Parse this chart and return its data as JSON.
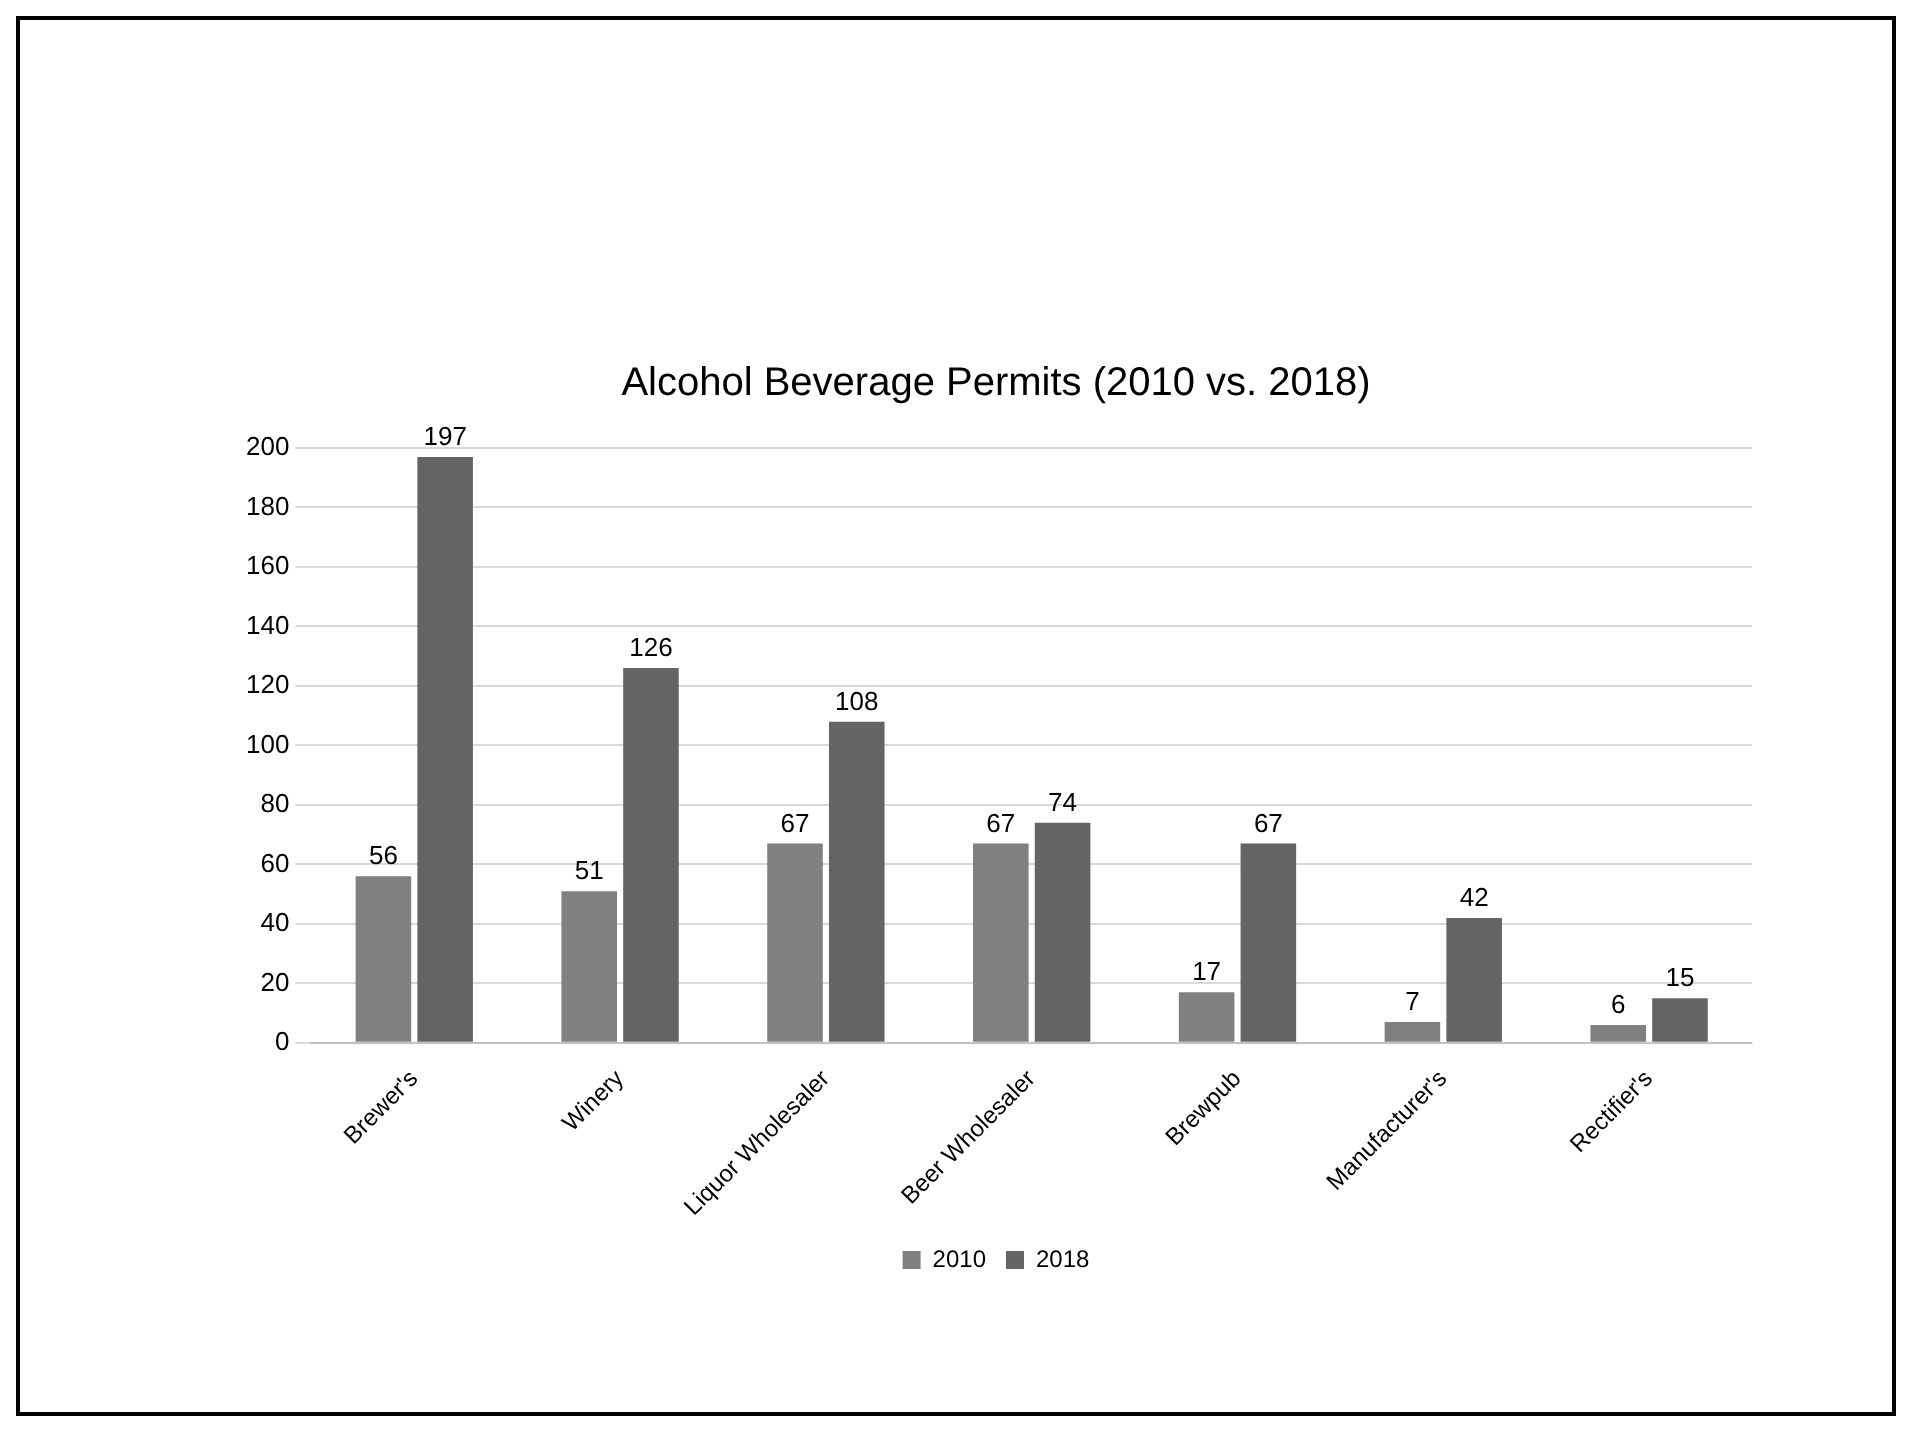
{
  "chart_data": {
    "type": "bar",
    "title": "Alcohol Beverage Permits (2010 vs. 2018)",
    "categories": [
      "Brewer's",
      "Winery",
      "Liquor Wholesaler",
      "Beer Wholesaler",
      "Brewpub",
      "Manufacturer's",
      "Rectifier's"
    ],
    "series": [
      {
        "name": "2010",
        "color": "#808080",
        "values": [
          56,
          51,
          67,
          67,
          17,
          7,
          6
        ]
      },
      {
        "name": "2018",
        "color": "#646464",
        "values": [
          197,
          126,
          108,
          74,
          67,
          42,
          15
        ]
      }
    ],
    "ylim": [
      0,
      200
    ],
    "yticks": [
      0,
      20,
      40,
      60,
      80,
      100,
      120,
      140,
      160,
      180,
      200
    ],
    "grid": "y",
    "legend": "bottom",
    "data_labels": true
  }
}
